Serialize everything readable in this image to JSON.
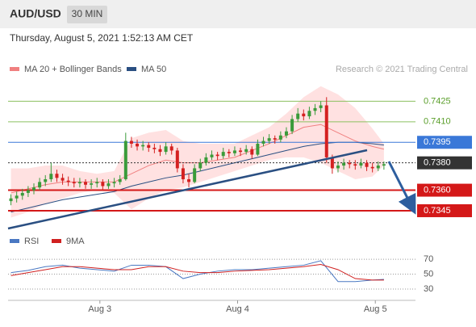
{
  "header": {
    "symbol": "AUD/USD",
    "timeframe": "30 MIN",
    "timestamp": "Thursday, August 5, 2021 1:52:13 AM CET"
  },
  "chart_data": [
    {
      "type": "candlestick",
      "source": "Research © 2021 Trading Central",
      "up_color": "#3a9b3a",
      "down_color": "#d42020",
      "xlim": [
        -0.5,
        70.5
      ],
      "ylim": [
        0.7332,
        0.744
      ],
      "candles": [
        [
          0.7352,
          0.7357,
          0.7349,
          0.7354
        ],
        [
          0.7354,
          0.7359,
          0.7351,
          0.7356
        ],
        [
          0.7356,
          0.7361,
          0.7353,
          0.7358
        ],
        [
          0.7358,
          0.7363,
          0.7355,
          0.736
        ],
        [
          0.736,
          0.7365,
          0.7357,
          0.7362
        ],
        [
          0.7362,
          0.7369,
          0.736,
          0.7366
        ],
        [
          0.7366,
          0.7371,
          0.7363,
          0.7368
        ],
        [
          0.7368,
          0.738,
          0.7366,
          0.7372
        ],
        [
          0.7372,
          0.7375,
          0.7366,
          0.7369
        ],
        [
          0.7369,
          0.7372,
          0.7364,
          0.7367
        ],
        [
          0.7367,
          0.737,
          0.7363,
          0.7366
        ],
        [
          0.7366,
          0.7369,
          0.7362,
          0.7365
        ],
        [
          0.7365,
          0.7369,
          0.7362,
          0.7366
        ],
        [
          0.7366,
          0.7368,
          0.7361,
          0.7364
        ],
        [
          0.7364,
          0.7368,
          0.7361,
          0.7365
        ],
        [
          0.7365,
          0.7369,
          0.7362,
          0.7366
        ],
        [
          0.7366,
          0.7368,
          0.736,
          0.7363
        ],
        [
          0.7363,
          0.7368,
          0.7361,
          0.7365
        ],
        [
          0.7365,
          0.7369,
          0.7362,
          0.7366
        ],
        [
          0.7366,
          0.7371,
          0.7364,
          0.7368
        ],
        [
          0.7368,
          0.7402,
          0.7367,
          0.7396
        ],
        [
          0.7396,
          0.7399,
          0.7391,
          0.7394
        ],
        [
          0.7394,
          0.7397,
          0.7389,
          0.7392
        ],
        [
          0.7392,
          0.7396,
          0.7389,
          0.7393
        ],
        [
          0.7393,
          0.7395,
          0.7388,
          0.7391
        ],
        [
          0.7391,
          0.7394,
          0.7387,
          0.739
        ],
        [
          0.739,
          0.7393,
          0.7385,
          0.7388
        ],
        [
          0.7388,
          0.7395,
          0.7386,
          0.7392
        ],
        [
          0.7392,
          0.7394,
          0.7386,
          0.7389
        ],
        [
          0.7389,
          0.7391,
          0.7373,
          0.7376
        ],
        [
          0.7376,
          0.7379,
          0.7365,
          0.7368
        ],
        [
          0.7368,
          0.7372,
          0.7362,
          0.7366
        ],
        [
          0.7366,
          0.7379,
          0.7365,
          0.7376
        ],
        [
          0.7376,
          0.7383,
          0.7374,
          0.738
        ],
        [
          0.738,
          0.7387,
          0.7378,
          0.7384
        ],
        [
          0.7384,
          0.7389,
          0.7382,
          0.7386
        ],
        [
          0.7386,
          0.7388,
          0.7382,
          0.7385
        ],
        [
          0.7385,
          0.7391,
          0.7383,
          0.7388
        ],
        [
          0.7388,
          0.739,
          0.7384,
          0.7387
        ],
        [
          0.7387,
          0.7392,
          0.7385,
          0.7389
        ],
        [
          0.7389,
          0.7391,
          0.7385,
          0.7388
        ],
        [
          0.7388,
          0.7393,
          0.7386,
          0.739
        ],
        [
          0.739,
          0.7392,
          0.7383,
          0.7386
        ],
        [
          0.7386,
          0.7397,
          0.7385,
          0.7394
        ],
        [
          0.7394,
          0.7399,
          0.7392,
          0.7396
        ],
        [
          0.7396,
          0.7401,
          0.7394,
          0.7398
        ],
        [
          0.7398,
          0.74,
          0.7394,
          0.7397
        ],
        [
          0.7397,
          0.7403,
          0.7395,
          0.74
        ],
        [
          0.74,
          0.7406,
          0.7398,
          0.7403
        ],
        [
          0.7403,
          0.7415,
          0.7401,
          0.7412
        ],
        [
          0.7412,
          0.742,
          0.741,
          0.7416
        ],
        [
          0.7416,
          0.7419,
          0.7411,
          0.7414
        ],
        [
          0.7414,
          0.7421,
          0.7412,
          0.7418
        ],
        [
          0.7418,
          0.7423,
          0.7415,
          0.742
        ],
        [
          0.742,
          0.7425,
          0.7417,
          0.7422
        ],
        [
          0.7422,
          0.7428,
          0.738,
          0.7384
        ],
        [
          0.7384,
          0.7386,
          0.7372,
          0.7376
        ],
        [
          0.7376,
          0.7381,
          0.7373,
          0.7378
        ],
        [
          0.7378,
          0.7383,
          0.7375,
          0.738
        ],
        [
          0.738,
          0.7382,
          0.7376,
          0.7379
        ],
        [
          0.7379,
          0.7382,
          0.7375,
          0.7378
        ],
        [
          0.7378,
          0.7383,
          0.7376,
          0.738
        ],
        [
          0.738,
          0.7382,
          0.7374,
          0.7377
        ],
        [
          0.7377,
          0.738,
          0.7373,
          0.7376
        ],
        [
          0.7376,
          0.7381,
          0.7374,
          0.7378
        ],
        [
          0.7378,
          0.7381,
          0.7375,
          0.7379
        ]
      ],
      "x": [
        0,
        3,
        6,
        9,
        12,
        15,
        18,
        21,
        24,
        27,
        30,
        33,
        36,
        39,
        42,
        45,
        48,
        51,
        54,
        57,
        60,
        63,
        65
      ],
      "series": [
        {
          "name": "MA 20 + Bollinger Bands",
          "color": "#f08080",
          "values": [
            0.7358,
            0.7361,
            0.7364,
            0.7366,
            0.7366,
            0.7366,
            0.7366,
            0.7372,
            0.7378,
            0.7382,
            0.738,
            0.738,
            0.7382,
            0.7384,
            0.7389,
            0.7394,
            0.74,
            0.7406,
            0.7408,
            0.7402,
            0.7396,
            0.7392,
            0.739
          ],
          "upper": [
            0.7376,
            0.7376,
            0.7378,
            0.7378,
            0.7374,
            0.7372,
            0.7374,
            0.7398,
            0.7402,
            0.7404,
            0.7396,
            0.7394,
            0.7394,
            0.7394,
            0.74,
            0.7406,
            0.7416,
            0.7428,
            0.7436,
            0.743,
            0.742,
            0.7405,
            0.7394
          ],
          "lower": [
            0.734,
            0.7344,
            0.735,
            0.7354,
            0.7358,
            0.736,
            0.7358,
            0.7346,
            0.7354,
            0.736,
            0.7362,
            0.7366,
            0.737,
            0.7374,
            0.7378,
            0.7382,
            0.7384,
            0.7384,
            0.738,
            0.7374,
            0.7368,
            0.737,
            0.7378
          ]
        },
        {
          "name": "MA 50",
          "color": "#2a4f82",
          "values": [
            0.7344,
            0.7347,
            0.735,
            0.7353,
            0.7355,
            0.7357,
            0.7359,
            0.7363,
            0.7366,
            0.7369,
            0.7371,
            0.7374,
            0.7377,
            0.738,
            0.7383,
            0.7386,
            0.7389,
            0.7392,
            0.7394,
            0.7395,
            0.7395,
            0.7394,
            0.7393
          ]
        }
      ],
      "levels": [
        {
          "value": 0.7425,
          "label": "0.7425",
          "color": "#8cc060",
          "box": false
        },
        {
          "value": 0.741,
          "label": "0.7410",
          "color": "#8cc060",
          "box": false
        },
        {
          "value": 0.7395,
          "label": "0.7395",
          "color": "#3a78d8",
          "box": true
        },
        {
          "value": 0.738,
          "label": "0.7380",
          "color": "#333333",
          "box": true
        },
        {
          "value": 0.736,
          "label": "0.7360",
          "color": "#d41818",
          "box": true
        },
        {
          "value": 0.7345,
          "label": "0.7345",
          "color": "#d41818",
          "box": true
        }
      ]
    },
    {
      "type": "line",
      "xlim": [
        -0.5,
        70.5
      ],
      "ylim": [
        18,
        82
      ],
      "yticks": [
        70,
        50,
        30
      ],
      "xticks": [
        {
          "value": 15.5,
          "label": "Aug 3"
        },
        {
          "value": 39.5,
          "label": "Aug 4"
        },
        {
          "value": 63.5,
          "label": "Aug 5"
        }
      ],
      "x": [
        0,
        3,
        6,
        9,
        12,
        15,
        18,
        21,
        24,
        27,
        30,
        33,
        36,
        39,
        42,
        45,
        48,
        51,
        54,
        57,
        60,
        63,
        65
      ],
      "series": [
        {
          "name": "RSI",
          "color": "#4a78c2",
          "values": [
            52,
            55,
            60,
            62,
            58,
            56,
            54,
            62,
            62,
            60,
            44,
            50,
            54,
            56,
            56,
            58,
            60,
            62,
            68,
            40,
            40,
            42,
            43
          ]
        },
        {
          "name": "9MA",
          "color": "#d02020",
          "values": [
            48,
            52,
            56,
            60,
            60,
            58,
            56,
            56,
            60,
            60,
            54,
            52,
            52,
            54,
            55,
            56,
            58,
            60,
            63,
            56,
            44,
            42,
            42
          ]
        }
      ]
    }
  ]
}
